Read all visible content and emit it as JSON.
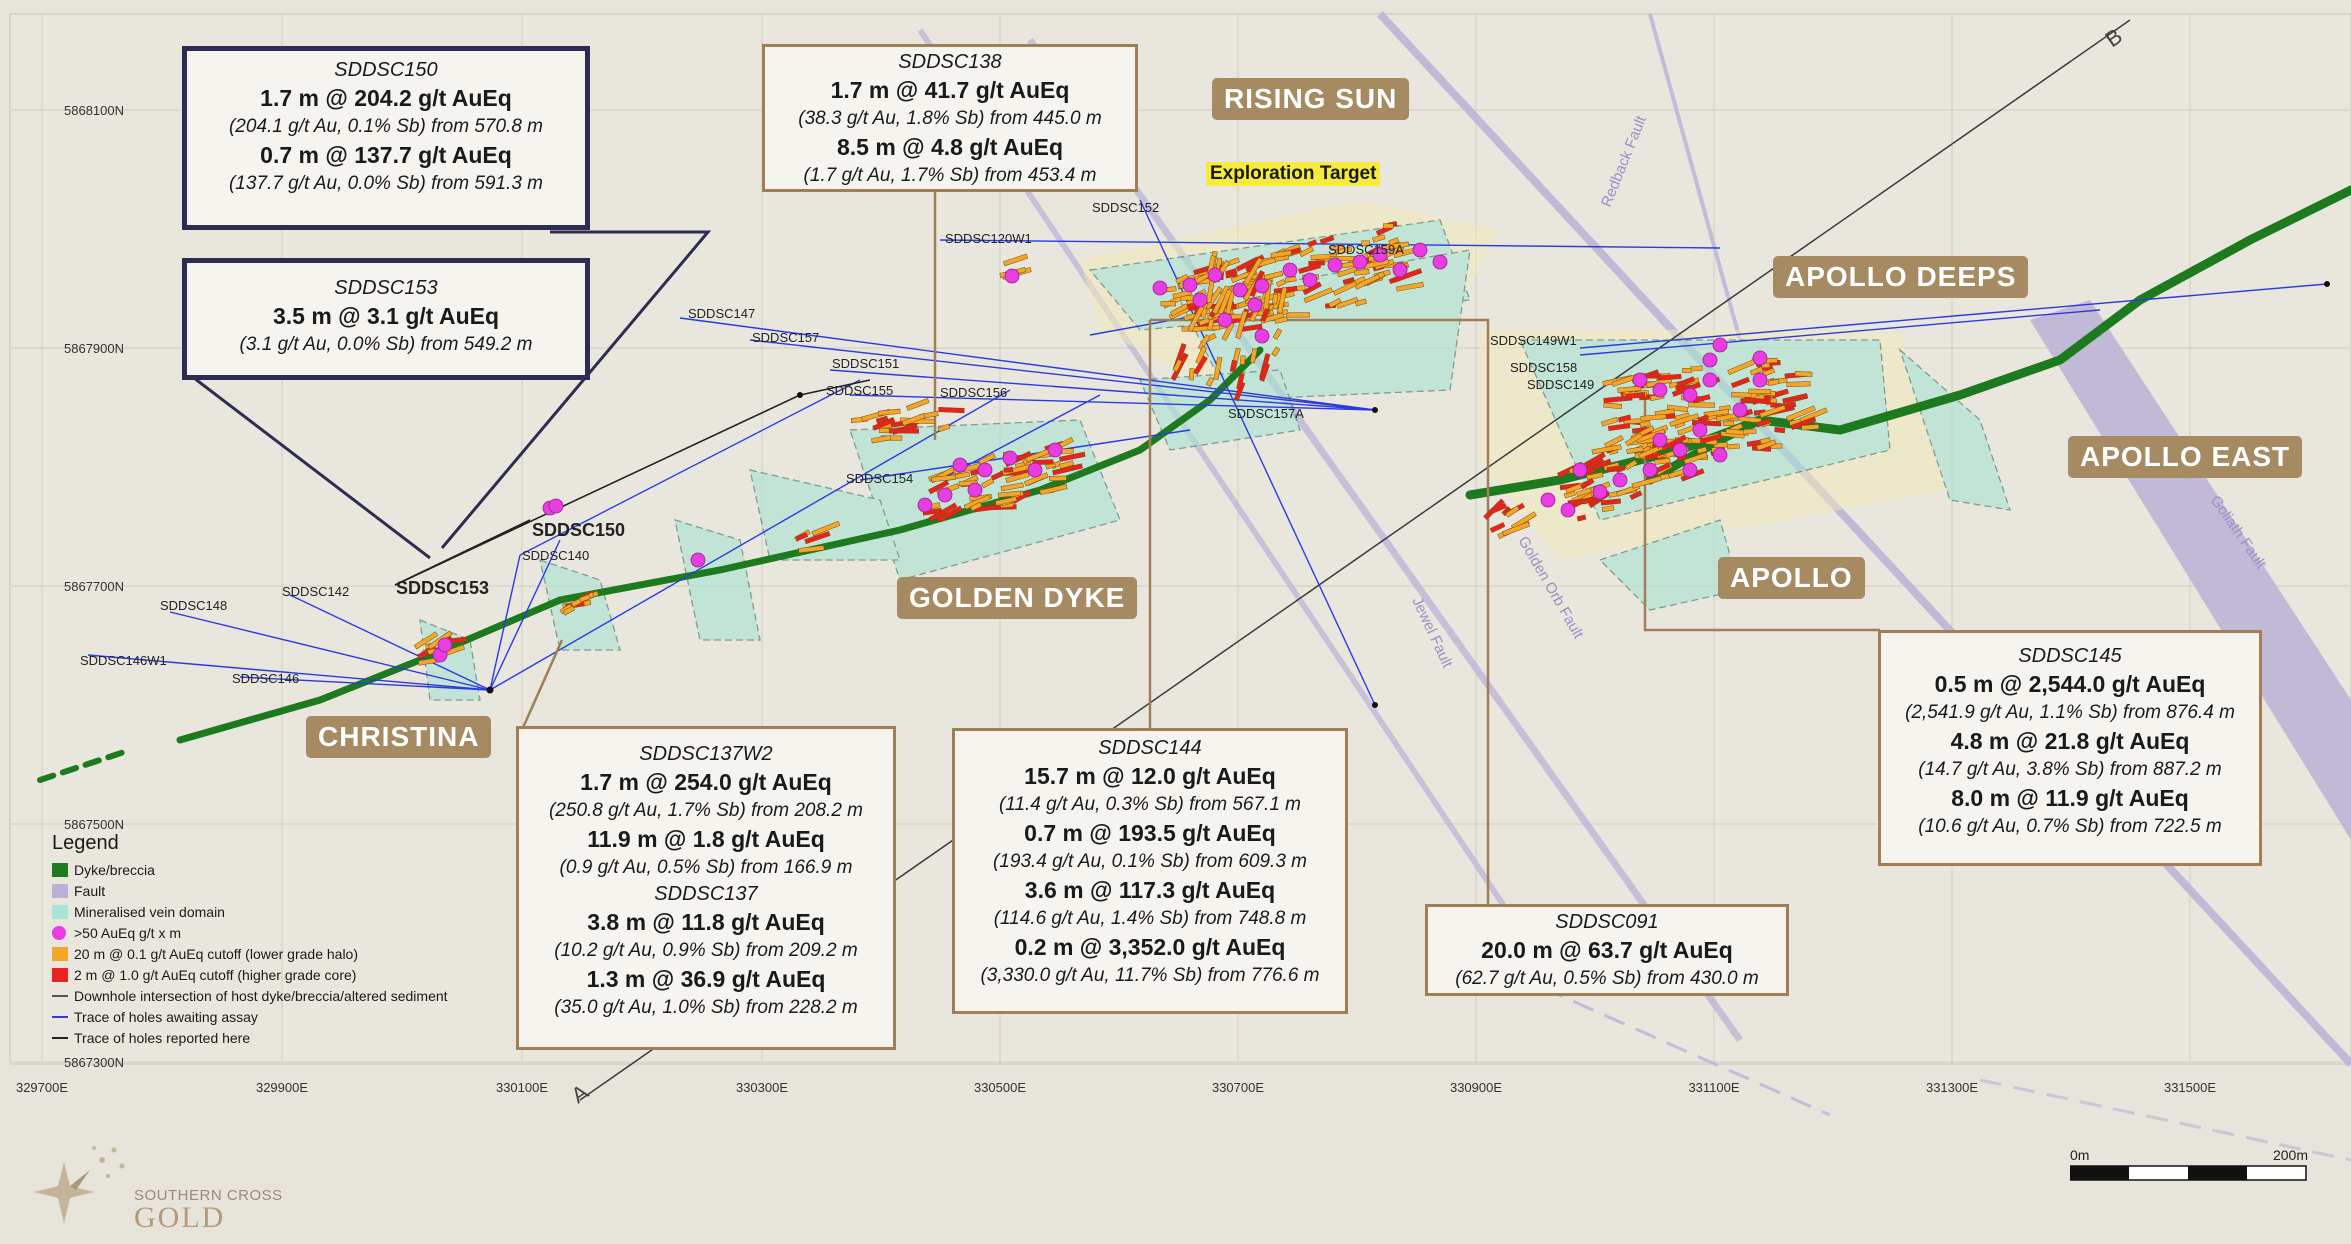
{
  "grid": {
    "eastings": [
      "329700E",
      "329900E",
      "330100E",
      "330300E",
      "330500E",
      "330700E",
      "330900E",
      "331100E",
      "331300E",
      "331500E"
    ],
    "northings": [
      "5868100N",
      "5867900N",
      "5867700N",
      "5867500N",
      "5867300N"
    ]
  },
  "section_labels": {
    "a": "A",
    "b": "B"
  },
  "zones": {
    "rising_sun": "RISING SUN",
    "apollo_deeps": "APOLLO DEEPS",
    "apollo_east": "APOLLO EAST",
    "apollo": "APOLLO",
    "golden_dyke": "GOLDEN DYKE",
    "christina": "CHRISTINA"
  },
  "exploration_target": "Exploration Target",
  "faults": {
    "redback": "Redback Fault",
    "golden_orb": "Golden Orb Fault",
    "jewel": "Jewel Fault",
    "goliath": "Goliath Fault"
  },
  "holes": {
    "sddsc148": "SDDSC148",
    "sddsc146w1": "SDDSC146W1",
    "sddsc146": "SDDSC146",
    "sddsc142": "SDDSC142",
    "sddsc153": "SDDSC153",
    "sddsc150": "SDDSC150",
    "sddsc140": "SDDSC140",
    "sddsc147": "SDDSC147",
    "sddsc157": "SDDSC157",
    "sddsc151": "SDDSC151",
    "sddsc155": "SDDSC155",
    "sddsc156": "SDDSC156",
    "sddsc154": "SDDSC154",
    "sddsc120w1": "SDDSC120W1",
    "sddsc152": "SDDSC152",
    "sddsc159a": "SDDSC159A",
    "sddsc157a": "SDDSC157A",
    "sddsc149w1": "SDDSC149W1",
    "sddsc158": "SDDSC158",
    "sddsc149": "SDDSC149"
  },
  "callouts": {
    "c150": {
      "hole": "SDDSC150",
      "l1": "1.7 m @ 204.2 g/t AuEq",
      "s1": "(204.1 g/t Au, 0.1% Sb) from 570.8 m",
      "l2": "0.7 m @ 137.7 g/t AuEq",
      "s2": "(137.7 g/t Au, 0.0% Sb) from 591.3 m"
    },
    "c153": {
      "hole": "SDDSC153",
      "l1": "3.5 m @ 3.1 g/t AuEq",
      "s1": "(3.1 g/t Au, 0.0% Sb) from 549.2 m"
    },
    "c138": {
      "hole": "SDDSC138",
      "l1": "1.7 m @ 41.7 g/t AuEq",
      "s1": "(38.3 g/t Au, 1.8% Sb) from 445.0 m",
      "l2": "8.5 m @ 4.8 g/t AuEq",
      "s2": "(1.7 g/t Au, 1.7% Sb) from 453.4 m"
    },
    "c137w2": {
      "hole": "SDDSC137W2",
      "l1": "1.7 m @ 254.0 g/t AuEq",
      "s1": "(250.8 g/t Au, 1.7% Sb) from 208.2 m",
      "l2": "11.9 m @ 1.8 g/t AuEq",
      "s2": "(0.9 g/t Au, 0.5% Sb) from 166.9 m",
      "hole2": "SDDSC137",
      "l3": "3.8 m @ 11.8 g/t AuEq",
      "s3": "(10.2 g/t Au, 0.9% Sb) from 209.2 m",
      "l4": "1.3 m @ 36.9 g/t AuEq",
      "s4": "(35.0 g/t Au, 1.0% Sb) from 228.2 m"
    },
    "c144": {
      "hole": "SDDSC144",
      "l1": "15.7 m @ 12.0 g/t AuEq",
      "s1": "(11.4 g/t Au, 0.3% Sb) from 567.1 m",
      "l2": "0.7 m @ 193.5 g/t AuEq",
      "s2": "(193.4 g/t Au, 0.1% Sb) from 609.3 m",
      "l3": "3.6 m @ 117.3 g/t AuEq",
      "s3": "(114.6 g/t Au, 1.4% Sb) from 748.8 m",
      "l4": "0.2 m @ 3,352.0 g/t AuEq",
      "s4": "(3,330.0 g/t Au, 11.7% Sb) from 776.6 m"
    },
    "c091": {
      "hole": "SDDSC091",
      "l1": "20.0 m @ 63.7 g/t AuEq",
      "s1": "(62.7 g/t Au, 0.5% Sb) from 430.0 m"
    },
    "c145": {
      "hole": "SDDSC145",
      "l1": "0.5 m @ 2,544.0 g/t AuEq",
      "s1": "(2,541.9 g/t Au, 1.1% Sb) from 876.4 m",
      "l2": "4.8 m @ 21.8 g/t AuEq",
      "s2": "(14.7 g/t Au, 3.8% Sb) from 887.2 m",
      "l3": "8.0 m @ 11.9 g/t AuEq",
      "s3": "(10.6 g/t Au, 0.7% Sb) from 722.5 m"
    }
  },
  "legend": {
    "title": "Legend",
    "items": [
      {
        "label": "Dyke/breccia",
        "color": "#1e7a1e"
      },
      {
        "label": "Fault",
        "color": "#b9b1d6"
      },
      {
        "label": "Mineralised vein domain",
        "color": "#a8e3d3"
      },
      {
        "label": ">50 AuEq g/t x m",
        "color": "#e83de0"
      },
      {
        "label": "20 m @ 0.1 g/t AuEq cutoff (lower grade halo)",
        "color": "#f4a628"
      },
      {
        "label": "2 m @ 1.0 g/t AuEq cutoff (higher grade core)",
        "color": "#e8231c"
      },
      {
        "label": "Downhole intersection of host dyke/breccia/altered sediment",
        "color": "#555555"
      },
      {
        "label": "Trace of holes awaiting assay",
        "color": "#2a3be0"
      },
      {
        "label": "Trace of holes reported here",
        "color": "#222222"
      }
    ]
  },
  "scale": {
    "start": "0m",
    "end": "200m"
  },
  "logo": {
    "line1": "SOUTHERN CROSS",
    "line2": "GOLD"
  },
  "colors": {
    "background": "#e7e4dc",
    "dyke": "#1e7a1e",
    "fault": "#b9b1d6",
    "vein": "#a8e3d3",
    "magenta": "#e83de0",
    "orange": "#f4a628",
    "red": "#e8231c",
    "blue_trace": "#2a3be0",
    "callout_border": "#a07f56",
    "zone_label": "#a58a62"
  }
}
